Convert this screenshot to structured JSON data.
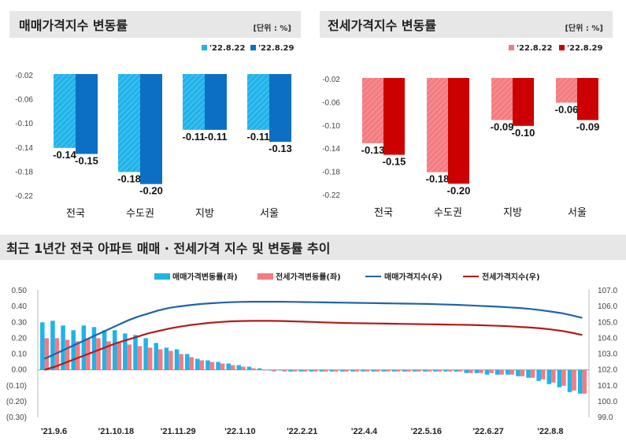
{
  "colors": {
    "sale_light": "#1fb3ea",
    "sale_dark": "#0c6fc4",
    "jeonse_light": "#f47b80",
    "jeonse_dark": "#cc0000",
    "sale_index_line": "#1f63a8",
    "jeonse_index_line": "#b51a1a",
    "title_bar": "#e7e7e7"
  },
  "chart_data": [
    {
      "type": "bar",
      "title": "매매가격지수 변동률",
      "unit": "[단위 : %]",
      "categories": [
        "전국",
        "수도권",
        "지방",
        "서울"
      ],
      "series": [
        {
          "name": "'22.8.22",
          "values": [
            -0.14,
            -0.18,
            -0.11,
            -0.11
          ],
          "labels": [
            "-0.14",
            "-0.18",
            "-0.11",
            "-0.11"
          ]
        },
        {
          "name": "'22.8.29",
          "values": [
            -0.15,
            -0.2,
            -0.11,
            -0.13
          ],
          "labels": [
            "-0.15",
            "-0.20",
            "-0.11",
            "-0.13"
          ]
        }
      ],
      "ylim": [
        -0.22,
        -0.02
      ],
      "yticks": [
        -0.02,
        -0.06,
        -0.1,
        -0.14,
        -0.18,
        -0.22
      ],
      "ytick_labels": [
        "-0.02",
        "-0.06",
        "-0.10",
        "-0.14",
        "-0.18",
        "-0.22"
      ],
      "legend_position": "top-right",
      "grid": false
    },
    {
      "type": "bar",
      "title": "전세가격지수 변동률",
      "unit": "[단위 : %]",
      "categories": [
        "전국",
        "수도권",
        "지방",
        "서울"
      ],
      "series": [
        {
          "name": "'22.8.22",
          "values": [
            -0.13,
            -0.18,
            -0.09,
            -0.06
          ],
          "labels": [
            "-0.13",
            "-0.18",
            "-0.09",
            "-0.06"
          ]
        },
        {
          "name": "'22.8.29",
          "values": [
            -0.15,
            -0.2,
            -0.1,
            -0.09
          ],
          "labels": [
            "-0.15",
            "-0.20",
            "-0.10",
            "-0.09"
          ]
        }
      ],
      "ylim": [
        -0.22,
        -0.02
      ],
      "yticks": [
        -0.02,
        -0.06,
        -0.1,
        -0.14,
        -0.18,
        -0.22
      ],
      "ytick_labels": [
        "-0.02",
        "-0.06",
        "-0.10",
        "-0.14",
        "-0.18",
        "-0.22"
      ],
      "legend_position": "top-right",
      "grid": false
    },
    {
      "type": "bar+line",
      "title": "최근 1년간 전국 아파트 매매 · 전세가격 지수 및 변동률 추이",
      "x_tick_labels": [
        "'21.9.6",
        "'21.10.18",
        "'21.11.29",
        "'22.1.10",
        "'22.2.21",
        "'22.4.4",
        "'22.5.16",
        "'22.6.27",
        "'22.8.8"
      ],
      "x_tick_week_index": [
        0,
        6,
        12,
        18,
        24,
        30,
        36,
        42,
        48
      ],
      "left_axis": {
        "ylim": [
          -0.3,
          0.5
        ],
        "ticks": [
          0.5,
          0.4,
          0.3,
          0.2,
          0.1,
          0.0,
          -0.1,
          -0.2,
          -0.3
        ],
        "tick_labels": [
          "0.50",
          "0.40",
          "0.30",
          "0.20",
          "0.10",
          "0.00",
          "(0.10)",
          "(0.20)",
          "(0.30)"
        ]
      },
      "right_axis": {
        "ylim": [
          99.0,
          107.0
        ],
        "ticks": [
          107.0,
          106.0,
          105.0,
          104.0,
          103.0,
          102.0,
          101.0,
          100.0,
          99.0
        ],
        "tick_labels": [
          "107.0",
          "106.0",
          "105.0",
          "104.0",
          "103.0",
          "102.0",
          "101.0",
          "100.0",
          "99.0"
        ]
      },
      "legend_position": "top",
      "series": [
        {
          "name": "매매가격변동률(좌)",
          "kind": "bar",
          "axis": "left",
          "values": [
            0.3,
            0.31,
            0.28,
            0.25,
            0.28,
            0.27,
            0.25,
            0.25,
            0.23,
            0.22,
            0.2,
            0.17,
            0.14,
            0.13,
            0.1,
            0.07,
            0.06,
            0.05,
            0.04,
            0.03,
            0.02,
            0.01,
            0.0,
            0.0,
            -0.01,
            -0.01,
            -0.01,
            -0.01,
            -0.01,
            -0.01,
            -0.01,
            -0.01,
            -0.01,
            -0.01,
            -0.01,
            -0.01,
            -0.01,
            -0.01,
            -0.01,
            -0.01,
            -0.01,
            -0.02,
            -0.02,
            -0.03,
            -0.03,
            -0.03,
            -0.04,
            -0.05,
            -0.07,
            -0.09,
            -0.11,
            -0.14,
            -0.15
          ]
        },
        {
          "name": "전세가격변동률(좌)",
          "kind": "bar",
          "axis": "left",
          "values": [
            0.2,
            0.2,
            0.19,
            0.18,
            0.2,
            0.2,
            0.18,
            0.17,
            0.16,
            0.15,
            0.14,
            0.13,
            0.12,
            0.1,
            0.08,
            0.06,
            0.05,
            0.04,
            0.03,
            0.02,
            0.01,
            0.0,
            -0.01,
            -0.01,
            -0.01,
            -0.01,
            -0.01,
            -0.01,
            -0.01,
            -0.01,
            -0.01,
            -0.01,
            -0.01,
            -0.01,
            -0.01,
            -0.01,
            -0.01,
            -0.01,
            -0.01,
            -0.01,
            -0.01,
            -0.02,
            -0.02,
            -0.02,
            -0.03,
            -0.03,
            -0.04,
            -0.05,
            -0.06,
            -0.08,
            -0.1,
            -0.13,
            -0.15
          ]
        },
        {
          "name": "매매가격지수(우)",
          "kind": "line",
          "axis": "right",
          "values": [
            102.7,
            103.0,
            103.3,
            103.6,
            103.9,
            104.2,
            104.5,
            104.8,
            105.1,
            105.35,
            105.55,
            105.75,
            105.9,
            106.0,
            106.08,
            106.15,
            106.2,
            106.24,
            106.27,
            106.29,
            106.3,
            106.3,
            106.3,
            106.3,
            106.29,
            106.28,
            106.27,
            106.26,
            106.25,
            106.24,
            106.23,
            106.22,
            106.21,
            106.2,
            106.19,
            106.18,
            106.17,
            106.16,
            106.14,
            106.12,
            106.1,
            106.07,
            106.04,
            106.01,
            105.98,
            105.94,
            105.9,
            105.84,
            105.77,
            105.68,
            105.58,
            105.44,
            105.28
          ]
        },
        {
          "name": "전세가격지수(우)",
          "kind": "line",
          "axis": "right",
          "values": [
            102.0,
            102.2,
            102.45,
            102.7,
            102.95,
            103.2,
            103.45,
            103.7,
            103.9,
            104.1,
            104.3,
            104.45,
            104.6,
            104.72,
            104.82,
            104.9,
            104.97,
            105.02,
            105.06,
            105.08,
            105.09,
            105.09,
            105.09,
            105.08,
            105.06,
            105.04,
            105.02,
            105.0,
            104.98,
            104.96,
            104.95,
            104.94,
            104.93,
            104.92,
            104.91,
            104.9,
            104.89,
            104.88,
            104.87,
            104.86,
            104.85,
            104.84,
            104.82,
            104.8,
            104.78,
            104.75,
            104.71,
            104.67,
            104.62,
            104.55,
            104.46,
            104.34,
            104.2
          ]
        }
      ]
    }
  ]
}
